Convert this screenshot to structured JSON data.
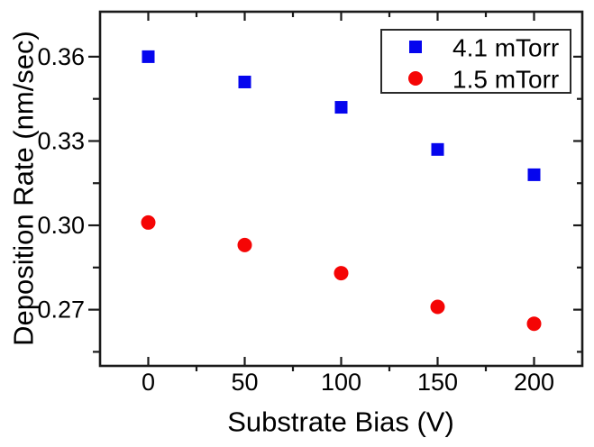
{
  "figure": {
    "background": "#ffffff",
    "axis_color": "#1a1a1a",
    "text_color": "#000000"
  },
  "chart_data": {
    "type": "scatter",
    "title": "",
    "xlabel": "Substrate Bias (V)",
    "ylabel": "Deposition Rate (nm/sec)",
    "xlim": [
      -25,
      225
    ],
    "ylim": [
      0.25,
      0.376
    ],
    "grid": false,
    "legend_position": "top-right",
    "x_major_ticks": [
      0,
      50,
      100,
      150,
      200
    ],
    "x_minor_ticks": [
      25,
      75,
      125,
      175
    ],
    "x_tick_labels": [
      "0",
      "50",
      "100",
      "150",
      "200"
    ],
    "y_major_ticks": [
      0.36,
      0.33,
      0.3,
      0.27
    ],
    "y_minor_ticks": [
      0.345,
      0.315,
      0.285,
      0.255
    ],
    "y_tick_labels": [
      "0.36",
      "0.33",
      "0.30",
      "0.27"
    ],
    "x": [
      0,
      50,
      100,
      150,
      200
    ],
    "series": [
      {
        "name": "4.1 mTorr",
        "marker": "square",
        "color": "#0505ee",
        "values": [
          0.36,
          0.351,
          0.342,
          0.327,
          0.318
        ]
      },
      {
        "name": "1.5 mTorr",
        "marker": "circle",
        "color": "#f50505",
        "values": [
          0.301,
          0.293,
          0.283,
          0.271,
          0.265
        ]
      }
    ]
  }
}
